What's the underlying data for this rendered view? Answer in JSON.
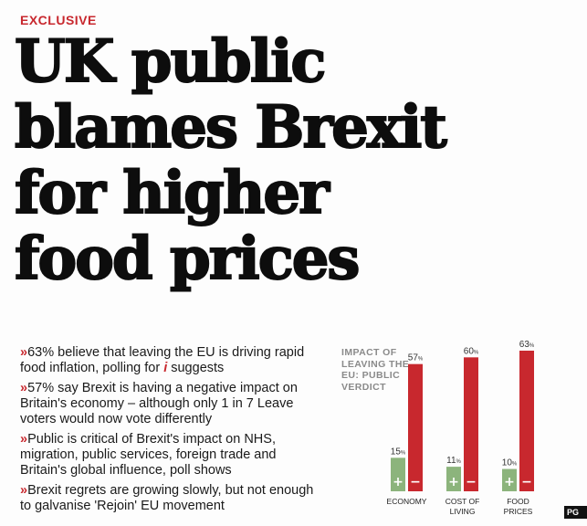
{
  "kicker": "EXCLUSIVE",
  "headline": {
    "line1": "UK public",
    "line2": "blames Brexit",
    "line3": "for higher",
    "line4": "food prices"
  },
  "bullets": [
    {
      "chevron": "»",
      "before": "63% believe that leaving the EU is driving rapid food inflation, polling for ",
      "brand": "i",
      "after": " suggests"
    },
    {
      "chevron": "»",
      "text": "57% say Brexit is having a negative impact on Britain's economy – although only 1 in 7 Leave voters would now vote differently"
    },
    {
      "chevron": "»",
      "text": "Public is critical of Brexit's impact on NHS, migration, public services, foreign trade and Britain's global influence, poll shows"
    },
    {
      "chevron": "»",
      "text": "Brexit regrets are growing slowly, but not enough to galvanise 'Rejoin' EU movement"
    }
  ],
  "corner_label": "PG",
  "chart_data": {
    "type": "bar",
    "title": "IMPACT OF LEAVING THE EU: PUBLIC VERDICT",
    "categories": [
      "ECONOMY",
      "COST OF LIVING",
      "FOOD PRICES"
    ],
    "series": [
      {
        "name": "+",
        "color": "#8cb47c",
        "values": [
          15,
          11,
          10
        ]
      },
      {
        "name": "−",
        "color": "#c8282e",
        "values": [
          57,
          60,
          63
        ]
      }
    ],
    "value_labels": [
      [
        "15%",
        "57%"
      ],
      [
        "11%",
        "60%"
      ],
      [
        "10%",
        "63%"
      ]
    ],
    "ylim": [
      0,
      63
    ],
    "grid": false,
    "legend": "none"
  }
}
